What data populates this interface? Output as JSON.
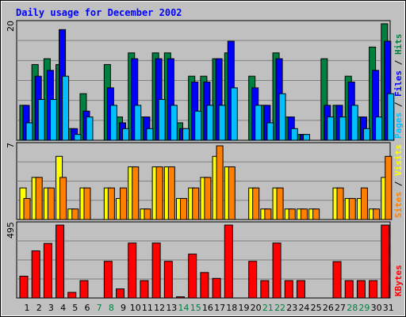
{
  "chart_data": {
    "type": "bar",
    "title": "Daily usage for December 2002",
    "x": [
      "1",
      "2",
      "3",
      "4",
      "5",
      "6",
      "7",
      "8",
      "9",
      "10",
      "11",
      "12",
      "13",
      "14",
      "15",
      "16",
      "17",
      "18",
      "19",
      "20",
      "21",
      "22",
      "23",
      "24",
      "25",
      "26",
      "27",
      "28",
      "29",
      "30",
      "31"
    ],
    "weekend_days": [
      "7",
      "8",
      "14",
      "15",
      "21",
      "22",
      "28",
      "29"
    ],
    "panels": [
      {
        "name": "hits",
        "ymax": 20,
        "ymax_label": "20",
        "right_label": [
          {
            "text": "Pages",
            "color": "#00c0ff"
          },
          {
            "text": " / ",
            "color": "#000000"
          },
          {
            "text": "Files",
            "color": "#0000ff"
          },
          {
            "text": " / ",
            "color": "#000000"
          },
          {
            "text": "Hits",
            "color": "#008040"
          }
        ],
        "series": [
          {
            "name": "Hits",
            "color": "#008040",
            "values": [
              6,
              13,
              14,
              13,
              2,
              8,
              0,
              13,
              4,
              15,
              4,
              15,
              15,
              3,
              11,
              11,
              14,
              15,
              0,
              11,
              6,
              15,
              4,
              1,
              0,
              14,
              6,
              11,
              4,
              16,
              20
            ]
          },
          {
            "name": "Files",
            "color": "#0000ff",
            "values": [
              6,
              11,
              12,
              19,
              2,
              5,
              0,
              9,
              3,
              14,
              4,
              14,
              14,
              2,
              10,
              10,
              14,
              17,
              0,
              9,
              6,
              14,
              4,
              1,
              0,
              6,
              6,
              10,
              4,
              12,
              17
            ]
          },
          {
            "name": "Pages",
            "color": "#00c0ff",
            "values": [
              3,
              7,
              7,
              11,
              1,
              4,
              0,
              6,
              2,
              6,
              2,
              7,
              6,
              2,
              5,
              6,
              6,
              9,
              0,
              6,
              3,
              8,
              2,
              1,
              0,
              4,
              4,
              6,
              2,
              4,
              8
            ]
          }
        ]
      },
      {
        "name": "visits",
        "ymax": 7,
        "ymax_label": "7",
        "right_label": [
          {
            "text": "Sites",
            "color": "#ff8000"
          },
          {
            "text": " / ",
            "color": "#000000"
          },
          {
            "text": "Visits",
            "color": "#ffff00"
          }
        ],
        "series": [
          {
            "name": "Visits",
            "color": "#ffff00",
            "values": [
              3,
              4,
              3,
              6,
              1,
              3,
              0,
              3,
              2,
              5,
              1,
              5,
              5,
              2,
              3,
              4,
              6,
              5,
              0,
              3,
              1,
              3,
              1,
              1,
              1,
              0,
              3,
              2,
              2,
              1,
              4
            ]
          },
          {
            "name": "Sites",
            "color": "#ff8000",
            "values": [
              2,
              4,
              3,
              4,
              1,
              3,
              0,
              3,
              3,
              5,
              1,
              5,
              5,
              2,
              3,
              4,
              7,
              5,
              0,
              3,
              1,
              3,
              1,
              1,
              1,
              0,
              3,
              2,
              3,
              1,
              6
            ]
          }
        ]
      },
      {
        "name": "kbytes",
        "ymax": 495,
        "ymax_label": "495",
        "right_label": [
          {
            "text": "KBytes",
            "color": "#ff0000"
          }
        ],
        "series": [
          {
            "name": "KBytes",
            "color": "#ff0000",
            "values": [
              148,
              320,
              370,
              495,
              38,
              118,
              0,
              249,
              62,
              373,
              118,
              373,
              249,
              8,
              298,
              173,
              133,
              495,
              0,
              249,
              118,
              373,
              118,
              118,
              0,
              0,
              247,
              118,
              118,
              118,
              495
            ]
          }
        ]
      }
    ],
    "grid": true
  }
}
